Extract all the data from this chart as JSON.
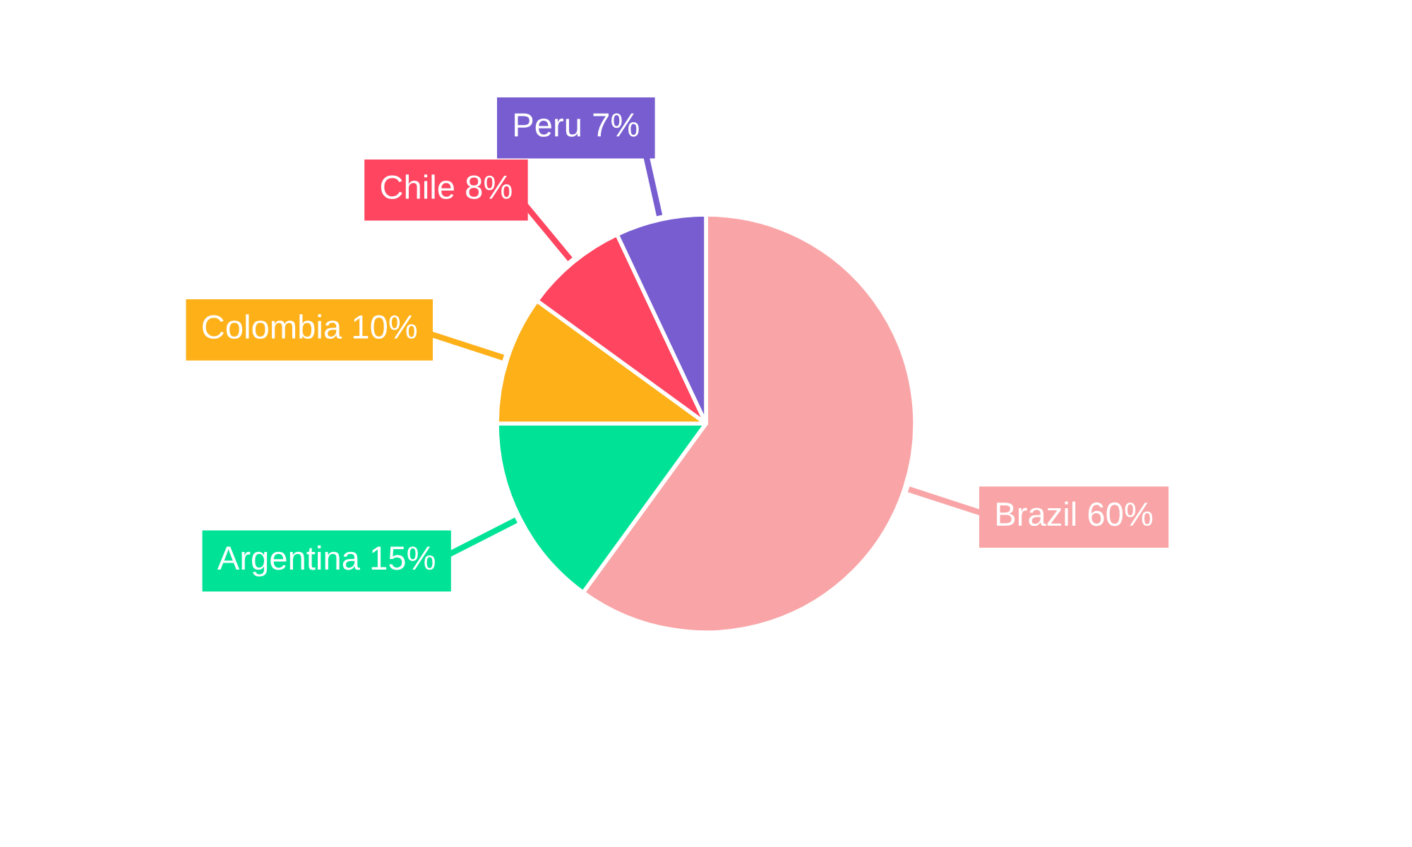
{
  "chart_data": {
    "type": "pie",
    "categories": [
      "Brazil 60%",
      "Argentina 15%",
      "Colombia 10%",
      "Chile 8%",
      "Peru 7%"
    ],
    "values": [
      60,
      15,
      10,
      8,
      7
    ],
    "colors": [
      "#f9a5a7",
      "#00e396",
      "#feb019",
      "#ff4560",
      "#775dd0"
    ]
  }
}
